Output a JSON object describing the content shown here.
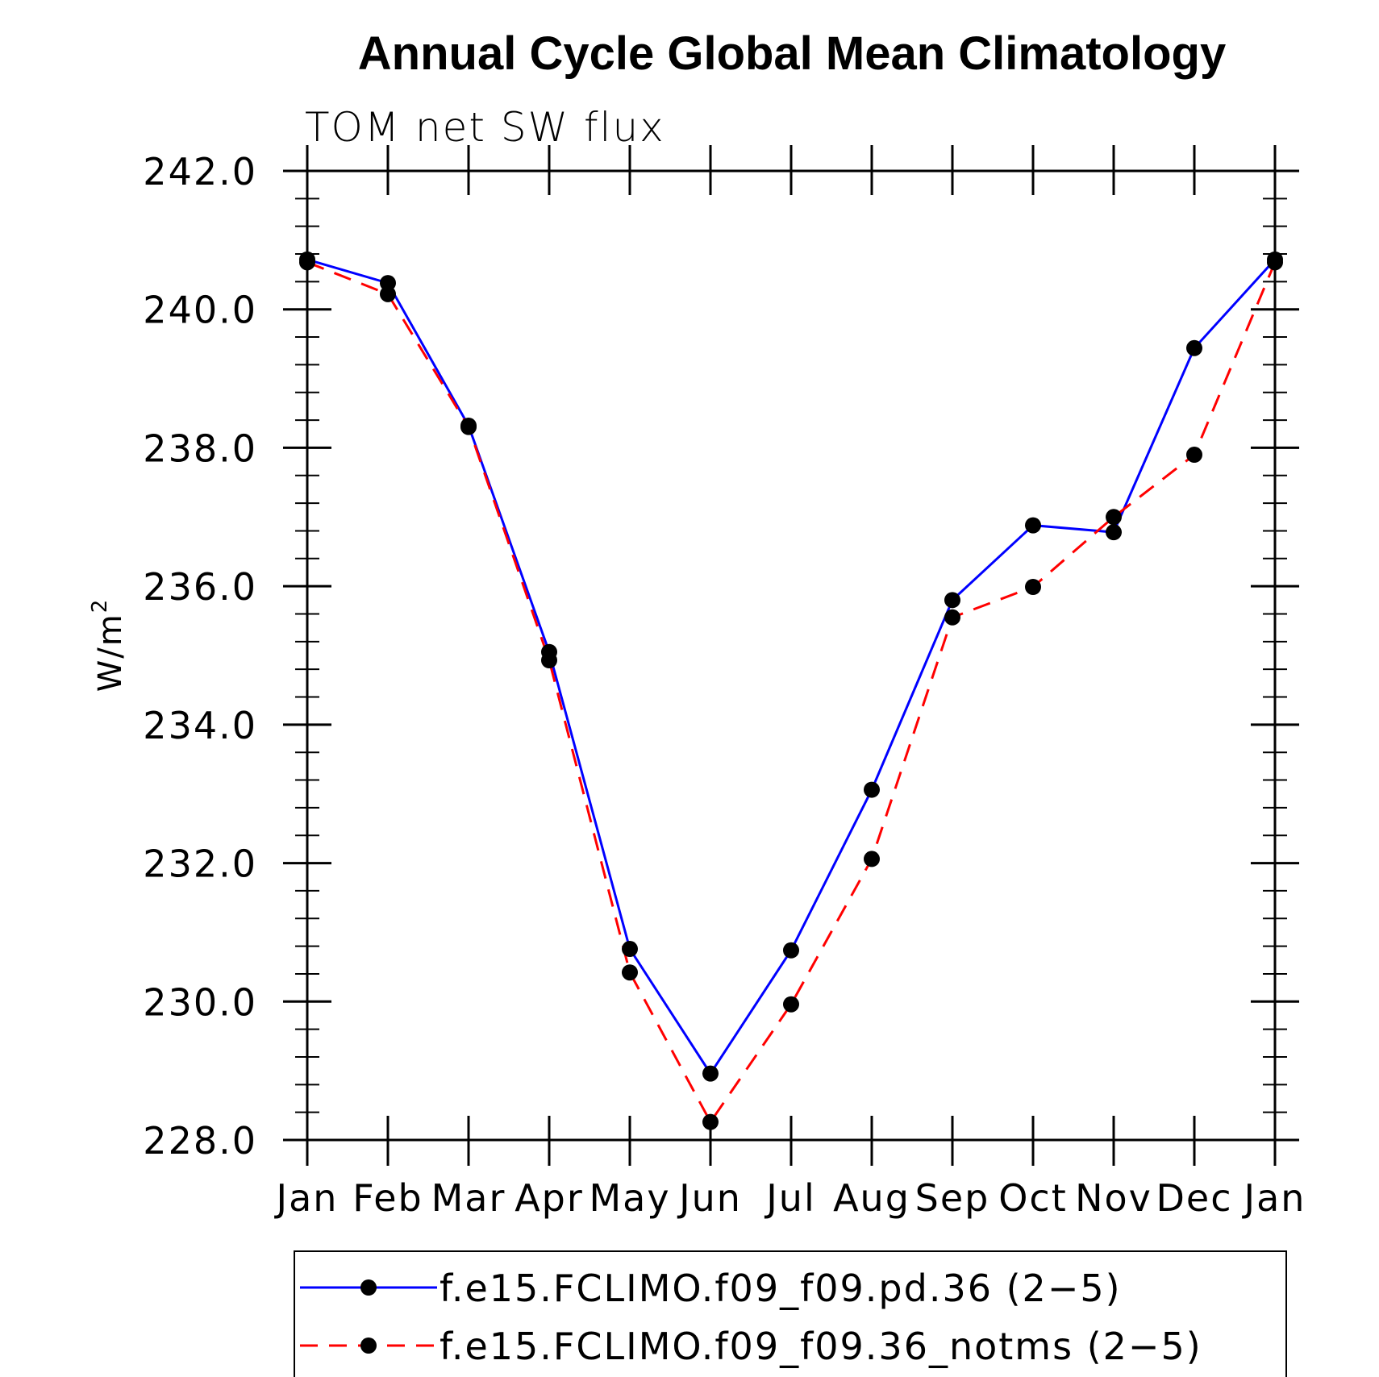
{
  "chart_data": {
    "type": "line",
    "title": "Annual Cycle Global Mean Climatology",
    "subtitle": "TOM net SW flux",
    "ylabel": "W/m",
    "ylabel_superscript": "2",
    "xlabel": "",
    "categories": [
      "Jan",
      "Feb",
      "Mar",
      "Apr",
      "May",
      "Jun",
      "Jul",
      "Aug",
      "Sep",
      "Oct",
      "Nov",
      "Dec",
      "Jan"
    ],
    "ylim": [
      228.0,
      242.0
    ],
    "yticks": [
      "228.0",
      "230.0",
      "232.0",
      "234.0",
      "236.0",
      "238.0",
      "240.0",
      "242.0"
    ],
    "grid": false,
    "legend_position": "bottom",
    "series": [
      {
        "name": "f.e15.FCLIMO.f09_f09.pd.36 (2−5)",
        "color": "#0000ff",
        "style": "solid",
        "values": [
          240.72,
          240.38,
          238.32,
          235.05,
          230.76,
          228.96,
          230.74,
          233.06,
          235.8,
          236.88,
          236.78,
          239.44,
          240.72
        ]
      },
      {
        "name": "f.e15.FCLIMO.f09_f09.36_notms (2−5)",
        "color": "#ff0000",
        "style": "dashed",
        "values": [
          240.68,
          240.22,
          238.3,
          234.93,
          230.42,
          228.26,
          229.96,
          232.06,
          235.55,
          235.99,
          237.0,
          237.9,
          240.68
        ]
      }
    ]
  }
}
